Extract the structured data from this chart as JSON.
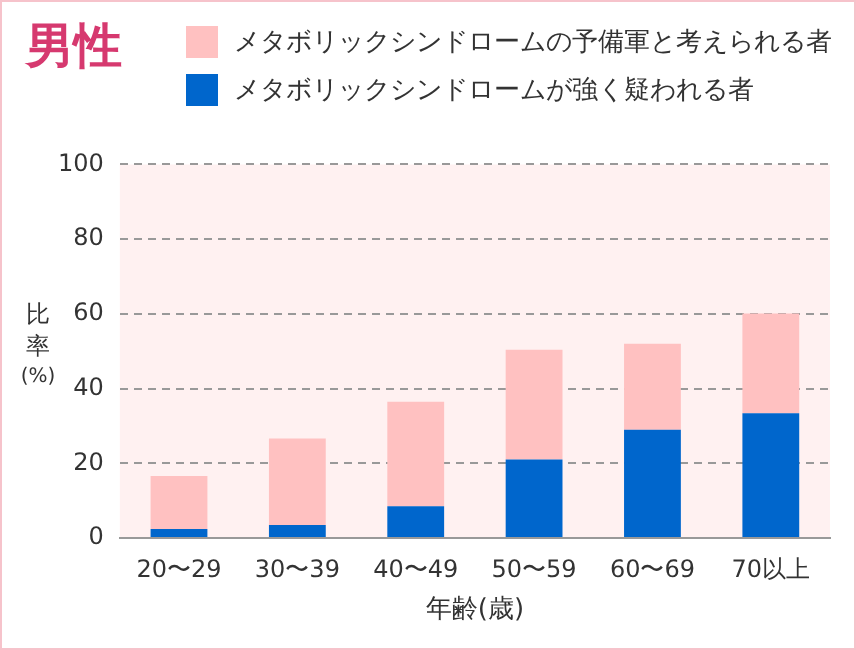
{
  "chart_data": {
    "type": "bar",
    "title": "男性",
    "xlabel": "年齢(歳)",
    "ylabel": "比率(%)",
    "categories": [
      "20〜29",
      "30〜39",
      "40〜49",
      "50〜59",
      "60〜69",
      "70以上"
    ],
    "series": [
      {
        "name": "メタボリックシンドロームが強く疑われる者",
        "color": "#0066cc",
        "values": [
          2.4,
          3.5,
          8.5,
          21.0,
          29.0,
          33.4
        ]
      },
      {
        "name": "メタボリックシンドロームの予備軍と考えられる者",
        "color": "#ffc1c1",
        "values": [
          14.2,
          23.1,
          28.0,
          29.4,
          23.0,
          26.7
        ]
      }
    ],
    "stacked": true,
    "ylim": [
      0,
      100
    ],
    "yticks": [
      0,
      20,
      40,
      60,
      80,
      100
    ],
    "grid": "y",
    "legend": "top"
  }
}
